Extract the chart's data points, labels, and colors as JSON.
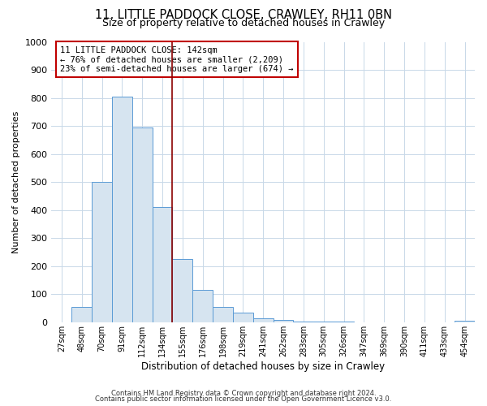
{
  "title_line1": "11, LITTLE PADDOCK CLOSE, CRAWLEY, RH11 0BN",
  "title_line2": "Size of property relative to detached houses in Crawley",
  "xlabel": "Distribution of detached houses by size in Crawley",
  "ylabel": "Number of detached properties",
  "bar_labels": [
    "27sqm",
    "48sqm",
    "70sqm",
    "91sqm",
    "112sqm",
    "134sqm",
    "155sqm",
    "176sqm",
    "198sqm",
    "219sqm",
    "241sqm",
    "262sqm",
    "283sqm",
    "305sqm",
    "326sqm",
    "347sqm",
    "369sqm",
    "390sqm",
    "411sqm",
    "433sqm",
    "454sqm"
  ],
  "bar_values": [
    0,
    55,
    500,
    805,
    695,
    410,
    225,
    115,
    55,
    35,
    15,
    8,
    3,
    2,
    1,
    0,
    0,
    0,
    0,
    0,
    5
  ],
  "bar_color": "#d6e4f0",
  "bar_edge_color": "#5b9bd5",
  "vline_x": 5.5,
  "vline_color": "#8b0000",
  "annotation_title": "11 LITTLE PADDOCK CLOSE: 142sqm",
  "annotation_line2": "← 76% of detached houses are smaller (2,209)",
  "annotation_line3": "23% of semi-detached houses are larger (674) →",
  "annotation_box_color": "#c00000",
  "ylim": [
    0,
    1000
  ],
  "yticks": [
    0,
    100,
    200,
    300,
    400,
    500,
    600,
    700,
    800,
    900,
    1000
  ],
  "footnote1": "Contains HM Land Registry data © Crown copyright and database right 2024.",
  "footnote2": "Contains public sector information licensed under the Open Government Licence v3.0.",
  "bg_color": "#ffffff",
  "grid_color": "#c8d8e8"
}
